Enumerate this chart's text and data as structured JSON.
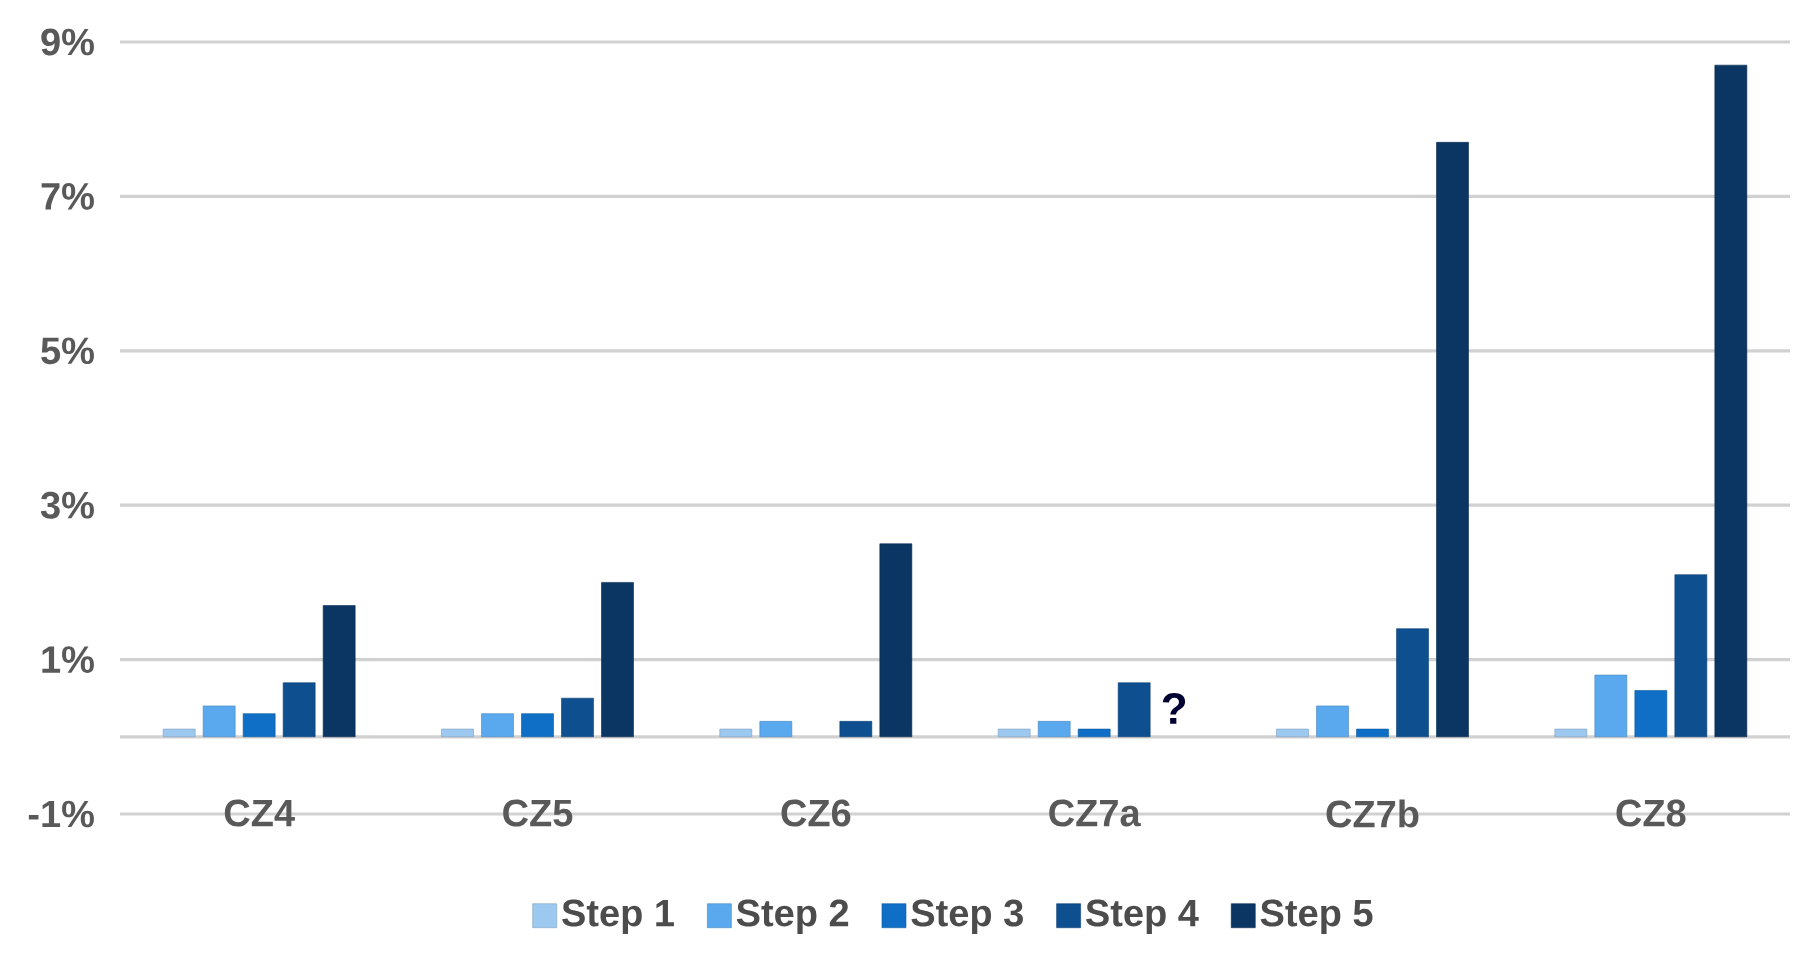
{
  "chart_data": {
    "type": "bar",
    "categories": [
      "CZ4",
      "CZ5",
      "CZ6",
      "CZ7a",
      "CZ7b",
      "CZ8"
    ],
    "series": [
      {
        "name": "Step 1",
        "color": "#9dc8f0",
        "values": [
          0.1,
          0.1,
          0.1,
          0.1,
          0.1,
          0.1
        ]
      },
      {
        "name": "Step 2",
        "color": "#5aa9ee",
        "values": [
          0.4,
          0.3,
          0.2,
          0.2,
          0.4,
          0.8
        ]
      },
      {
        "name": "Step 3",
        "color": "#0f6fc6",
        "values": [
          0.3,
          0.3,
          null,
          0.1,
          0.1,
          0.6
        ]
      },
      {
        "name": "Step 4",
        "color": "#0e4f90",
        "values": [
          0.7,
          0.5,
          0.2,
          0.7,
          1.4,
          2.1
        ]
      },
      {
        "name": "Step 5",
        "color": "#0b3562",
        "values": [
          1.7,
          2.0,
          2.5,
          null,
          7.7,
          8.7
        ]
      }
    ],
    "ylim": [
      -1,
      9
    ],
    "yticks": [
      {
        "value": -1,
        "label": "-1%"
      },
      {
        "value": 0,
        "label": null
      },
      {
        "value": 1,
        "label": "1%"
      },
      {
        "value": 3,
        "label": "3%"
      },
      {
        "value": 5,
        "label": "5%"
      },
      {
        "value": 7,
        "label": "7%"
      },
      {
        "value": 9,
        "label": "9%"
      }
    ],
    "grid": "y",
    "legend": "bottom",
    "annotations": [
      "?"
    ]
  }
}
